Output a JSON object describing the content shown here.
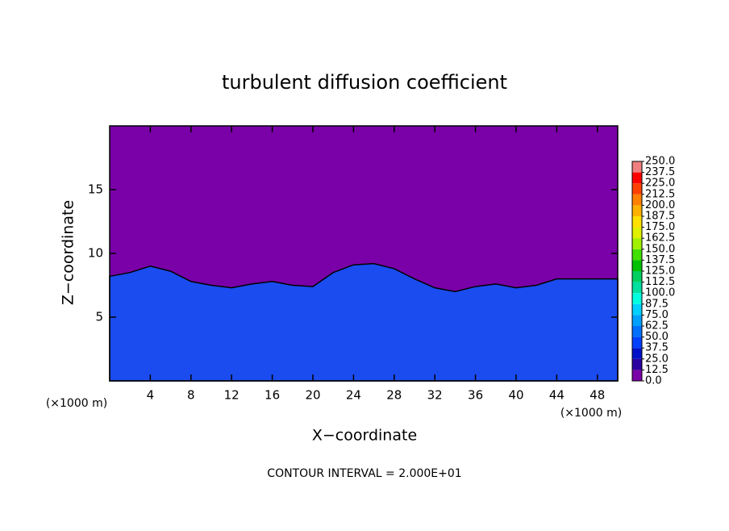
{
  "chart_data": {
    "type": "area",
    "title": "turbulent diffusion coefficient",
    "x_label": "X−coordinate",
    "y_label": "Z−coordinate",
    "x_unit": "(×1000 m)",
    "y_unit": "(×1000 m)",
    "footnote": "CONTOUR INTERVAL = 2.000E+01",
    "x": [
      0,
      2,
      4,
      6,
      8,
      10,
      12,
      14,
      16,
      18,
      20,
      22,
      24,
      26,
      28,
      30,
      32,
      34,
      36,
      38,
      40,
      42,
      44,
      46,
      48,
      50
    ],
    "values": [
      8.2,
      8.5,
      9.0,
      8.6,
      7.8,
      7.5,
      7.3,
      7.6,
      7.8,
      7.5,
      7.4,
      8.5,
      9.1,
      9.2,
      8.8,
      8.0,
      7.3,
      7.0,
      7.4,
      7.6,
      7.3,
      7.5,
      8.0,
      8.0,
      8.0,
      8.0
    ],
    "color": "#1a4cf0",
    "background_color": "#7a00a8",
    "xlim": [
      0,
      50
    ],
    "ylim": [
      0,
      20
    ],
    "xticks": [
      4,
      8,
      12,
      16,
      20,
      24,
      28,
      32,
      36,
      40,
      44,
      48
    ],
    "yticks": [
      5,
      10,
      15
    ],
    "colorbar": {
      "levels": [
        {
          "value": 0,
          "label": "0.0"
        },
        {
          "value": 12.5,
          "label": "12.5"
        },
        {
          "value": 25,
          "label": "25.0"
        },
        {
          "value": 37.5,
          "label": "37.5"
        },
        {
          "value": 50,
          "label": "50.0"
        },
        {
          "value": 62.5,
          "label": "62.5"
        },
        {
          "value": 75,
          "label": "75.0"
        },
        {
          "value": 87.5,
          "label": "87.5"
        },
        {
          "value": 100,
          "label": "100.0"
        },
        {
          "value": 112.5,
          "label": "112.5"
        },
        {
          "value": 125,
          "label": "125.0"
        },
        {
          "value": 137.5,
          "label": "137.5"
        },
        {
          "value": 150,
          "label": "150.0"
        },
        {
          "value": 162.5,
          "label": "162.5"
        },
        {
          "value": 175,
          "label": "175.0"
        },
        {
          "value": 187.5,
          "label": "187.5"
        },
        {
          "value": 200,
          "label": "200.0"
        },
        {
          "value": 212.5,
          "label": "212.5"
        },
        {
          "value": 225,
          "label": "225.0"
        },
        {
          "value": 237.5,
          "label": "237.5"
        },
        {
          "value": 250,
          "label": "250.0"
        }
      ],
      "colors": [
        "#7a00a8",
        "#2a00a0",
        "#0010c8",
        "#0040ff",
        "#0070ff",
        "#00a0ff",
        "#00d0ff",
        "#00ffe0",
        "#00e0a0",
        "#00d060",
        "#00c000",
        "#40e000",
        "#a0f000",
        "#e0f000",
        "#ffe000",
        "#ffb000",
        "#ff8000",
        "#ff4000",
        "#ff0000",
        "#f08080"
      ]
    }
  }
}
